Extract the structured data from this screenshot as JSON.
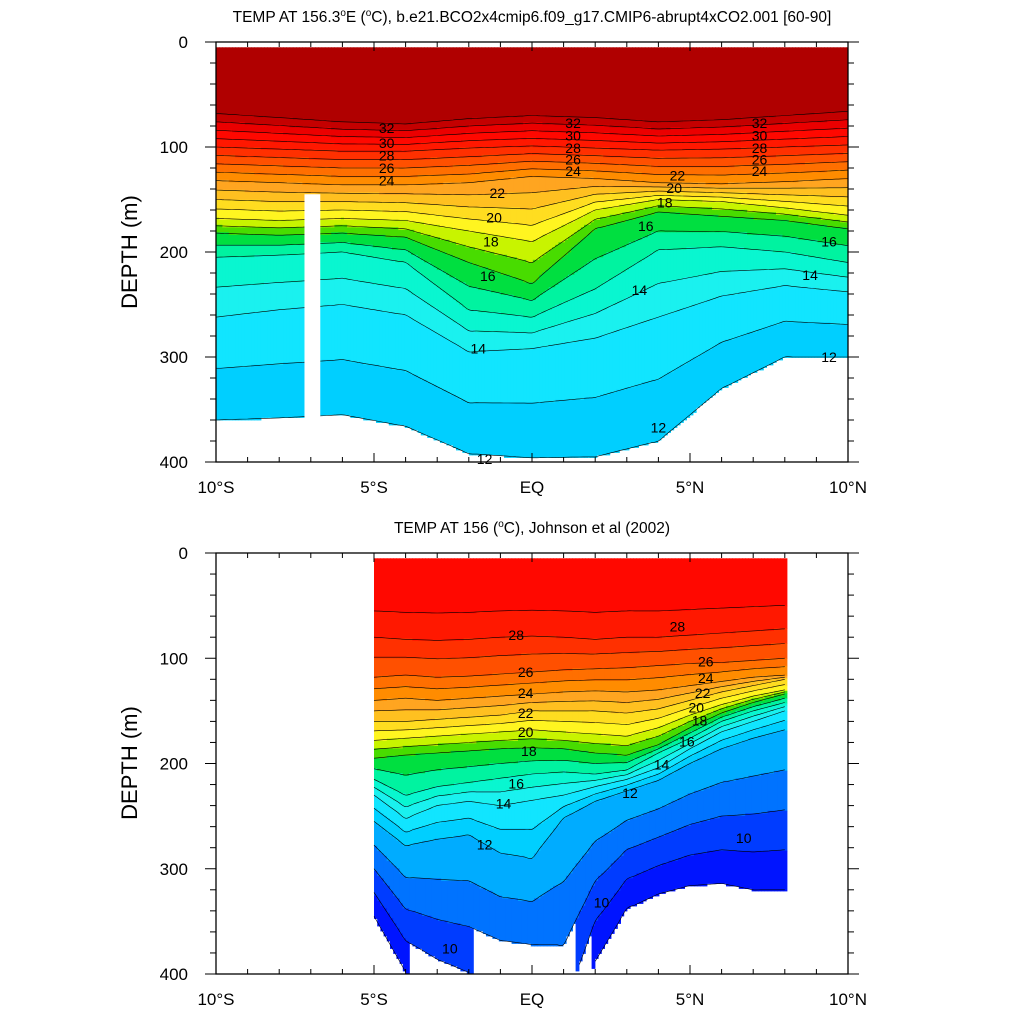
{
  "chart_data": [
    {
      "type": "heatmap",
      "subtype": "filled-contour",
      "title": "TEMP AT 156.3°E (°C), b.e21.BCO2x4cmip6.f09_g17.CMIP6-abrupt4xCO2.001 [60-90]",
      "title_parts": {
        "prefix": "TEMP AT 156.3",
        "sup1": "o",
        "mid1": "E (",
        "sup2": "o",
        "suffix": "C), b.e21.BCO2x4cmip6.f09_g17.CMIP6-abrupt4xCO2.001 [60-90]"
      },
      "xlabel": "",
      "ylabel": "DEPTH (m)",
      "x_unit": "latitude (degrees, negative = S)",
      "xlim": [
        -10,
        10
      ],
      "ylim": [
        400,
        0
      ],
      "x_tick_values": [
        -10,
        -5,
        0,
        5,
        10
      ],
      "x_tick_labels": [
        "10°S",
        "5°S",
        "EQ",
        "5°N",
        "10°N"
      ],
      "y_tick_values": [
        0,
        100,
        200,
        300,
        400
      ],
      "y_tick_labels": [
        "0",
        "100",
        "200",
        "300",
        "400"
      ],
      "levels": [
        12,
        13,
        14,
        15,
        16,
        17,
        18,
        19,
        20,
        21,
        22,
        23,
        24,
        25,
        26,
        27,
        28,
        29,
        30,
        31,
        32
      ],
      "data_xrange": [
        -10,
        10
      ],
      "data_yrange": [
        5,
        400
      ],
      "missing_band_x": [
        -7.2,
        -6.7
      ],
      "missing_band_depth_from": 145,
      "isotherm_depths": {
        "x": [
          -10,
          -8,
          -6,
          -4,
          -2,
          0,
          2,
          4,
          6,
          8,
          10
        ],
        "32": [
          68,
          72,
          76,
          78,
          73,
          70,
          72,
          76,
          74,
          70,
          66
        ],
        "28": [
          100,
          102,
          104,
          104,
          101,
          99,
          101,
          103,
          102,
          100,
          98
        ],
        "24": [
          132,
          134,
          136,
          136,
          134,
          128,
          130,
          134,
          135,
          133,
          130
        ],
        "20": [
          168,
          170,
          168,
          170,
          180,
          190,
          160,
          150,
          152,
          158,
          165
        ],
        "18": [
          182,
          184,
          182,
          186,
          210,
          230,
          178,
          162,
          166,
          170,
          178
        ],
        "16": [
          205,
          203,
          200,
          210,
          255,
          262,
          235,
          198,
          195,
          200,
          210
        ],
        "14": [
          262,
          255,
          250,
          260,
          295,
          292,
          282,
          262,
          242,
          232,
          238
        ],
        "12": [
          360,
          358,
          355,
          366,
          392,
          396,
          395,
          380,
          330,
          300,
          300
        ]
      },
      "contour_labels": [
        {
          "x": -4.6,
          "y": 82,
          "text": "32"
        },
        {
          "x": -4.6,
          "y": 96,
          "text": "30"
        },
        {
          "x": -4.6,
          "y": 108,
          "text": "28"
        },
        {
          "x": -4.6,
          "y": 120,
          "text": "26"
        },
        {
          "x": -4.6,
          "y": 132,
          "text": "24"
        },
        {
          "x": 1.3,
          "y": 77,
          "text": "32"
        },
        {
          "x": 1.3,
          "y": 89,
          "text": "30"
        },
        {
          "x": 1.3,
          "y": 101,
          "text": "28"
        },
        {
          "x": 1.3,
          "y": 112,
          "text": "26"
        },
        {
          "x": 1.3,
          "y": 123,
          "text": "24"
        },
        {
          "x": 7.2,
          "y": 77,
          "text": "32"
        },
        {
          "x": 7.2,
          "y": 89,
          "text": "30"
        },
        {
          "x": 7.2,
          "y": 101,
          "text": "28"
        },
        {
          "x": 7.2,
          "y": 112,
          "text": "26"
        },
        {
          "x": 7.2,
          "y": 123,
          "text": "24"
        },
        {
          "x": -1.1,
          "y": 144,
          "text": "22"
        },
        {
          "x": -1.2,
          "y": 167,
          "text": "20"
        },
        {
          "x": -1.3,
          "y": 190,
          "text": "18"
        },
        {
          "x": -1.4,
          "y": 223,
          "text": "16"
        },
        {
          "x": -1.7,
          "y": 292,
          "text": "14"
        },
        {
          "x": -1.5,
          "y": 397,
          "text": "12"
        },
        {
          "x": 4.6,
          "y": 127,
          "text": "22"
        },
        {
          "x": 4.5,
          "y": 139,
          "text": "20"
        },
        {
          "x": 4.2,
          "y": 153,
          "text": "18"
        },
        {
          "x": 3.6,
          "y": 175,
          "text": "16"
        },
        {
          "x": 3.4,
          "y": 236,
          "text": "14"
        },
        {
          "x": 4.0,
          "y": 367,
          "text": "12"
        },
        {
          "x": 9.4,
          "y": 190,
          "text": "16"
        },
        {
          "x": 8.8,
          "y": 222,
          "text": "14"
        },
        {
          "x": 9.4,
          "y": 300,
          "text": "12"
        }
      ]
    },
    {
      "type": "heatmap",
      "subtype": "filled-contour",
      "title": "TEMP AT 156 (°C), Johnson et al (2002)",
      "title_parts": {
        "prefix": "TEMP AT 156 (",
        "sup1": "o",
        "suffix": "C), Johnson et al (2002)"
      },
      "xlabel": "",
      "ylabel": "DEPTH (m)",
      "x_unit": "latitude (degrees, negative = S)",
      "xlim": [
        -10,
        10
      ],
      "ylim": [
        400,
        0
      ],
      "x_tick_values": [
        -10,
        -5,
        0,
        5,
        10
      ],
      "x_tick_labels": [
        "10°S",
        "5°S",
        "EQ",
        "5°N",
        "10°N"
      ],
      "y_tick_values": [
        0,
        100,
        200,
        300,
        400
      ],
      "y_tick_labels": [
        "0",
        "100",
        "200",
        "300",
        "400"
      ],
      "levels": [
        8,
        9,
        10,
        11,
        12,
        13,
        14,
        15,
        16,
        17,
        18,
        19,
        20,
        21,
        22,
        23,
        24,
        25,
        26,
        27,
        28,
        29
      ],
      "data_xrange": [
        -5,
        8
      ],
      "data_yrange": [
        5,
        400
      ],
      "isotherm_depths": {
        "x": [
          -5,
          -4,
          -3,
          -2,
          -1,
          0,
          1,
          2,
          3,
          4,
          5,
          6,
          7,
          8
        ],
        "28": [
          80,
          82,
          83,
          82,
          80,
          79,
          80,
          82,
          80,
          80,
          78,
          76,
          74,
          72
        ],
        "26": [
          118,
          116,
          118,
          117,
          115,
          113,
          111,
          110,
          109,
          107,
          105,
          104,
          102,
          100
        ],
        "24": [
          140,
          138,
          140,
          138,
          136,
          134,
          132,
          131,
          132,
          130,
          126,
          122,
          118,
          116
        ],
        "22": [
          160,
          160,
          158,
          156,
          154,
          150,
          150,
          150,
          152,
          148,
          140,
          132,
          126,
          120
        ],
        "20": [
          178,
          176,
          174,
          172,
          170,
          168,
          170,
          172,
          174,
          166,
          154,
          144,
          136,
          130
        ],
        "18": [
          195,
          192,
          190,
          188,
          186,
          185,
          186,
          190,
          192,
          182,
          166,
          152,
          142,
          134
        ],
        "16": [
          215,
          230,
          222,
          218,
          214,
          210,
          208,
          210,
          206,
          190,
          176,
          160,
          150,
          142
        ],
        "14": [
          230,
          252,
          240,
          236,
          240,
          235,
          230,
          222,
          215,
          204,
          186,
          170,
          160,
          150
        ],
        "12": [
          255,
          278,
          272,
          268,
          285,
          290,
          252,
          236,
          226,
          216,
          200,
          186,
          176,
          168
        ],
        "10": [
          300,
          338,
          348,
          355,
          368,
          372,
          372,
          312,
          282,
          270,
          258,
          250,
          248,
          244
        ]
      },
      "contour_labels": [
        {
          "x": -0.5,
          "y": 78,
          "text": "28"
        },
        {
          "x": 4.6,
          "y": 70,
          "text": "28"
        },
        {
          "x": -0.2,
          "y": 113,
          "text": "26"
        },
        {
          "x": -0.2,
          "y": 133,
          "text": "24"
        },
        {
          "x": -0.2,
          "y": 152,
          "text": "22"
        },
        {
          "x": -0.2,
          "y": 170,
          "text": "20"
        },
        {
          "x": -0.1,
          "y": 188,
          "text": "18"
        },
        {
          "x": -0.5,
          "y": 219,
          "text": "16"
        },
        {
          "x": -0.9,
          "y": 238,
          "text": "14"
        },
        {
          "x": -1.5,
          "y": 277,
          "text": "12"
        },
        {
          "x": -2.6,
          "y": 376,
          "text": "10"
        },
        {
          "x": 5.5,
          "y": 103,
          "text": "26"
        },
        {
          "x": 5.5,
          "y": 119,
          "text": "24"
        },
        {
          "x": 5.4,
          "y": 133,
          "text": "22"
        },
        {
          "x": 5.2,
          "y": 147,
          "text": "20"
        },
        {
          "x": 5.3,
          "y": 159,
          "text": "18"
        },
        {
          "x": 4.9,
          "y": 179,
          "text": "16"
        },
        {
          "x": 4.1,
          "y": 201,
          "text": "14"
        },
        {
          "x": 3.1,
          "y": 228,
          "text": "12"
        },
        {
          "x": 2.2,
          "y": 332,
          "text": "10"
        },
        {
          "x": 6.7,
          "y": 271,
          "text": "10"
        }
      ]
    }
  ]
}
